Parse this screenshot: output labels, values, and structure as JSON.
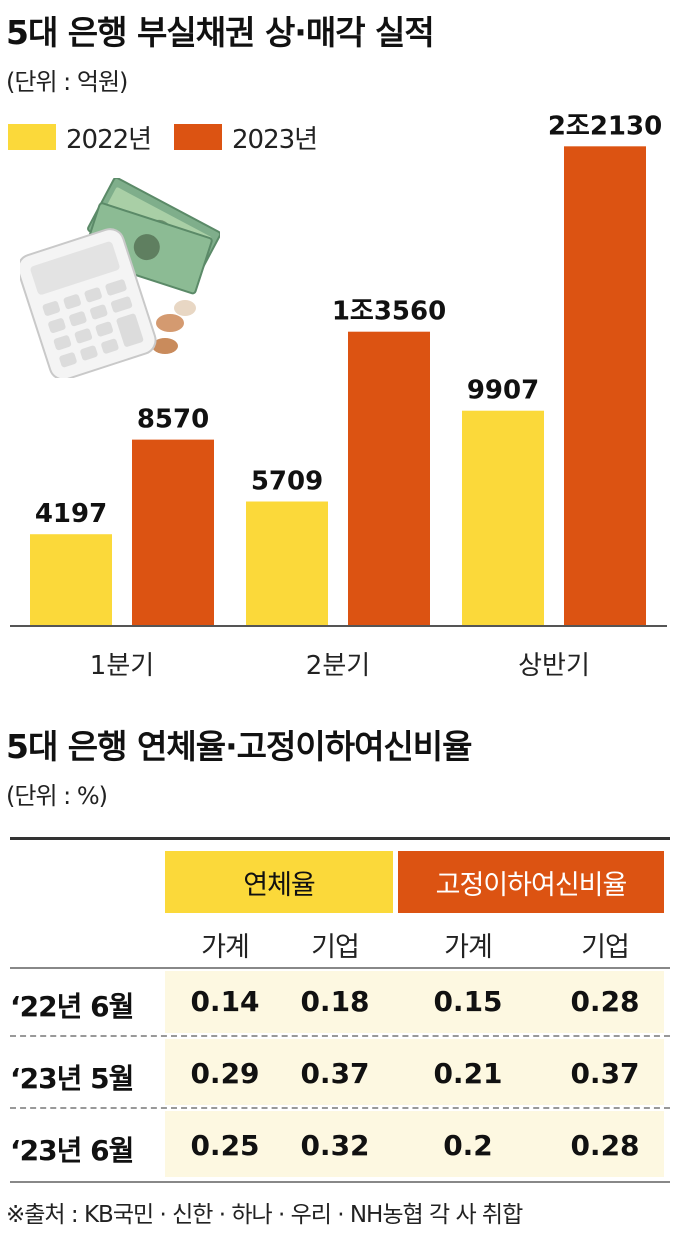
{
  "chart_data": {
    "type": "bar",
    "title": "5대 은행 부실채권 상·매각 실적",
    "unit": "(단위 : 억원)",
    "categories": [
      "1분기",
      "2분기",
      "상반기"
    ],
    "series": [
      {
        "name": "2022년",
        "values": [
          4197,
          5709,
          9907
        ],
        "labels": [
          "4197",
          "5709",
          "9907"
        ],
        "color": "#fbd93a"
      },
      {
        "name": "2023년",
        "values": [
          8570,
          13560,
          22130
        ],
        "labels": [
          "8570",
          "1조3560",
          "2조2130"
        ],
        "color": "#dc5312"
      }
    ],
    "ylim": [
      0,
      23000
    ],
    "legend": "top-left",
    "grid": false
  },
  "table": {
    "title": "5대 은행 연체율·고정이하여신비율",
    "unit": "(단위 : %)",
    "groups": [
      {
        "label": "연체율",
        "color": "#fbd93a"
      },
      {
        "label": "고정이하여신비율",
        "color": "#dc5312"
      }
    ],
    "subheaders": [
      "가계",
      "기업",
      "가계",
      "기업"
    ],
    "rows": [
      {
        "label": "‘22년 6월",
        "values": [
          "0.14",
          "0.18",
          "0.15",
          "0.28"
        ]
      },
      {
        "label": "‘23년 5월",
        "values": [
          "0.29",
          "0.37",
          "0.21",
          "0.37"
        ]
      },
      {
        "label": "‘23년 6월",
        "values": [
          "0.25",
          "0.32",
          "0.2",
          "0.28"
        ]
      }
    ]
  },
  "source": "※출처 : KB국민 · 신한 · 하나 · 우리 · NH농협 각 사 취합",
  "illustration": {
    "icon": "calculator-money-icon"
  }
}
